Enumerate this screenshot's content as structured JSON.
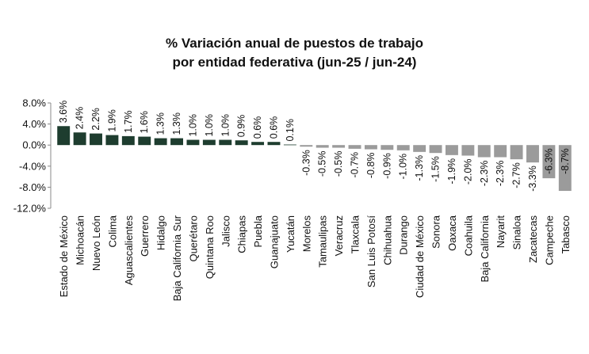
{
  "chart_data": {
    "type": "bar",
    "title": [
      "% Variación anual de puestos de trabajo",
      "por entidad federativa (jun-25 / jun-24)"
    ],
    "xlabel": "",
    "ylabel": "",
    "ylim": [
      -12.0,
      8.0
    ],
    "yticks": [
      8.0,
      4.0,
      0.0,
      -4.0,
      -8.0,
      -12.0
    ],
    "ytick_labels": [
      "8.0%",
      "4.0%",
      "0.0%",
      "-4.0%",
      "-8.0%",
      "-12.0%"
    ],
    "grid": false,
    "legend": "none",
    "colors": {
      "positive": "#1e3d2f",
      "negative": "#9b9b9b"
    },
    "categories": [
      "Estado de México",
      "Michoacán",
      "Nuevo León",
      "Colima",
      "Aguascalientes",
      "Guerrero",
      "Hidalgo",
      "Baja California Sur",
      "Querétaro",
      "Quintana Roo",
      "Jalisco",
      "Chiapas",
      "Puebla",
      "Guanajuato",
      "Yucatán",
      "Morelos",
      "Tamaulipas",
      "Veracruz",
      "Tlaxcala",
      "San Luis Potosí",
      "Chihuahua",
      "Durango",
      "Ciudad de México",
      "Sonora",
      "Oaxaca",
      "Coahuila",
      "Baja California",
      "Nayarit",
      "Sinaloa",
      "Zacatecas",
      "Campeche",
      "Tabasco"
    ],
    "values": [
      3.6,
      2.4,
      2.2,
      1.9,
      1.7,
      1.6,
      1.3,
      1.3,
      1.0,
      1.0,
      1.0,
      0.9,
      0.6,
      0.6,
      0.1,
      -0.3,
      -0.5,
      -0.5,
      -0.7,
      -0.8,
      -0.9,
      -1.0,
      -1.3,
      -1.5,
      -1.9,
      -2.0,
      -2.3,
      -2.3,
      -2.7,
      -3.3,
      -6.3,
      -8.7
    ],
    "data_labels": [
      "3.6%",
      "2.4%",
      "2.2%",
      "1.9%",
      "1.7%",
      "1.6%",
      "1.3%",
      "1.3%",
      "1.0%",
      "1.0%",
      "1.0%",
      "0.9%",
      "0.6%",
      "0.6%",
      "0.1%",
      "-0.3%",
      "-0.5%",
      "-0.5%",
      "-0.7%",
      "-0.8%",
      "-0.9%",
      "-1.0%",
      "-1.3%",
      "-1.5%",
      "-1.9%",
      "-2.0%",
      "-2.3%",
      "-2.3%",
      "-2.7%",
      "-3.3%",
      "-6.3%",
      "-8.7%"
    ]
  }
}
